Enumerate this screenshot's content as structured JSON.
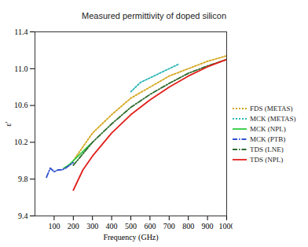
{
  "chart_data": {
    "type": "line",
    "title": "Measured permittivity of doped silicon",
    "x_label": "Frequency (GHz)",
    "y_label": "ε′",
    "xlim": [
      0,
      1000
    ],
    "xticks": [
      100,
      200,
      300,
      400,
      500,
      600,
      700,
      800,
      900,
      1000
    ],
    "ylim": [
      9.4,
      11.4
    ],
    "yticks": [
      9.4,
      9.8,
      10.2,
      10.6,
      11.0,
      11.4
    ],
    "grid": false,
    "legend": "right",
    "series": [
      {
        "name": "FDS (METAS)",
        "color": "#d4a51a",
        "line_style": "dotted",
        "x": [
          200,
          300,
          400,
          500,
          600,
          700,
          800,
          900,
          1000
        ],
        "values": [
          10.0,
          10.3,
          10.5,
          10.68,
          10.8,
          10.92,
          11.0,
          11.08,
          11.14
        ]
      },
      {
        "name": "MCK (METAS)",
        "color": "#2ab5b5",
        "line_style": "dotted",
        "x": [
          500,
          550,
          600,
          650,
          700,
          750
        ],
        "values": [
          10.75,
          10.85,
          10.9,
          10.95,
          11.0,
          11.05
        ]
      },
      {
        "name": "MCK (NPL)",
        "color": "#2ecc40",
        "line_style": "solid",
        "x": [
          150,
          175,
          200,
          225,
          250,
          275,
          290
        ],
        "values": [
          9.92,
          9.95,
          10.0,
          10.05,
          10.1,
          10.15,
          10.18
        ]
      },
      {
        "name": "MCK (PTB)",
        "color": "#3050d0",
        "line_style": "dashdot",
        "x": [
          60,
          80,
          100,
          120,
          140,
          160,
          180,
          200
        ],
        "values": [
          9.82,
          9.92,
          9.88,
          9.9,
          9.9,
          9.92,
          9.95,
          9.98
        ]
      },
      {
        "name": "TDS (LNE)",
        "color": "#2d6a2d",
        "line_style": "dashdot",
        "x": [
          200,
          300,
          400,
          500,
          600,
          700,
          800,
          900,
          1000
        ],
        "values": [
          9.95,
          10.2,
          10.4,
          10.58,
          10.72,
          10.84,
          10.95,
          11.03,
          11.1
        ]
      },
      {
        "name": "TDS (NPL)",
        "color": "#e0201b",
        "line_style": "solid",
        "x": [
          200,
          250,
          300,
          400,
          500,
          600,
          700,
          800,
          900,
          1000
        ],
        "values": [
          9.68,
          9.9,
          10.05,
          10.3,
          10.5,
          10.66,
          10.8,
          10.92,
          11.02,
          11.1
        ]
      }
    ]
  }
}
